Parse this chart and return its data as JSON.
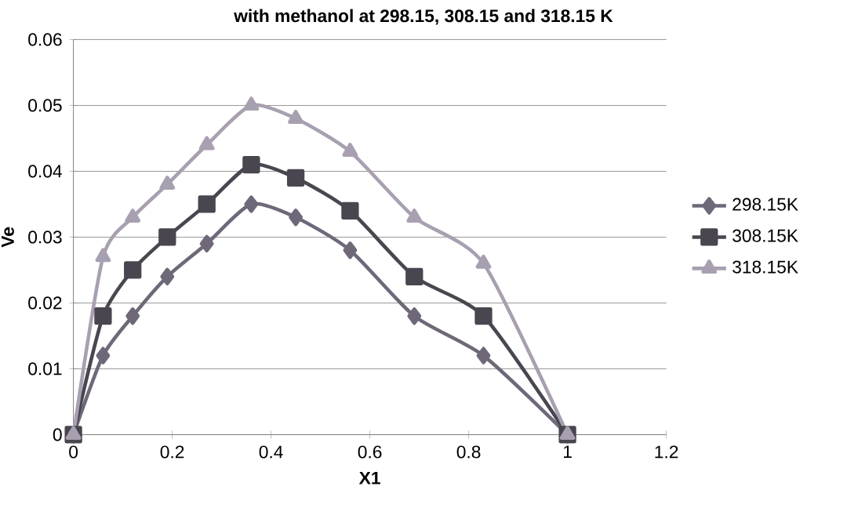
{
  "chart_data": {
    "type": "line",
    "title": "with methanol at 298.15, 308.15 and 318.15 K",
    "xlabel": "X1",
    "ylabel": "Ve",
    "x": [
      0,
      0.06,
      0.12,
      0.19,
      0.27,
      0.36,
      0.45,
      0.56,
      0.69,
      0.83,
      1
    ],
    "series": [
      {
        "name": "298.15K",
        "color": "#6e6878",
        "marker": "diamond",
        "values": [
          0,
          0.012,
          0.018,
          0.024,
          0.029,
          0.035,
          0.033,
          0.028,
          0.018,
          0.012,
          0
        ]
      },
      {
        "name": "308.15K",
        "color": "#4a4650",
        "marker": "square",
        "values": [
          0,
          0.018,
          0.025,
          0.03,
          0.035,
          0.041,
          0.039,
          0.034,
          0.024,
          0.018,
          0
        ]
      },
      {
        "name": "318.15K",
        "color": "#a8a0b0",
        "marker": "triangle",
        "values": [
          0,
          0.027,
          0.033,
          0.038,
          0.044,
          0.05,
          0.048,
          0.043,
          0.033,
          0.026,
          0
        ]
      }
    ],
    "xlim": [
      0,
      1.2
    ],
    "xticks": [
      0,
      0.2,
      0.4,
      0.6,
      0.8,
      1,
      1.2
    ],
    "ylim": [
      0,
      0.06
    ],
    "yticks": [
      0,
      0.01,
      0.02,
      0.03,
      0.04,
      0.05,
      0.06
    ],
    "grid": "y",
    "legend": "right",
    "line_style": "solid"
  }
}
